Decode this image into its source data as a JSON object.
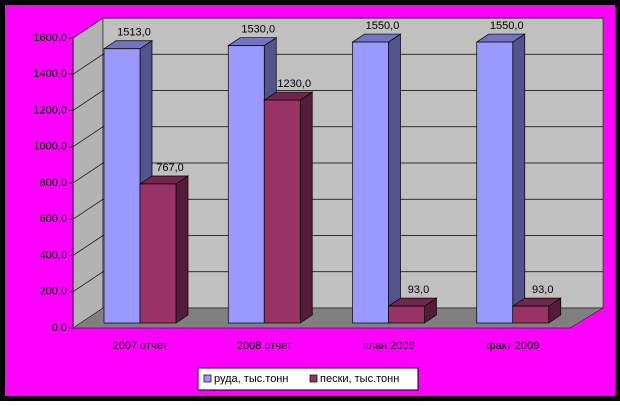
{
  "chart_data": {
    "type": "bar3d",
    "categories": [
      "2007 отчет",
      "2008 отчет",
      "план 2009",
      "факт 2009"
    ],
    "series": [
      {
        "name": "руда, тыс.тонн",
        "color": "#9999ff",
        "values": [
          1513,
          1530,
          1550,
          1550
        ],
        "value_labels": [
          "1513,0",
          "1530,0",
          "1550,0",
          "1550,0"
        ]
      },
      {
        "name": "пески, тыс.тонн",
        "color": "#993366",
        "values": [
          767,
          1230,
          93,
          93
        ],
        "value_labels": [
          "767,0",
          "1230,0",
          "93,0",
          "93,0"
        ]
      }
    ],
    "ylim": [
      0,
      1600
    ],
    "yticks": [
      {
        "value": 0,
        "label": "0,0"
      },
      {
        "value": 200,
        "label": "200,0"
      },
      {
        "value": 400,
        "label": "400,0"
      },
      {
        "value": 600,
        "label": "600,0"
      },
      {
        "value": 800,
        "label": "800,0"
      },
      {
        "value": 1000,
        "label": "1000,0"
      },
      {
        "value": 1200,
        "label": "1200,0"
      },
      {
        "value": 1400,
        "label": "1400,0"
      },
      {
        "value": 1600,
        "label": "1600,0"
      }
    ],
    "grid": true,
    "legend": "bottom"
  }
}
